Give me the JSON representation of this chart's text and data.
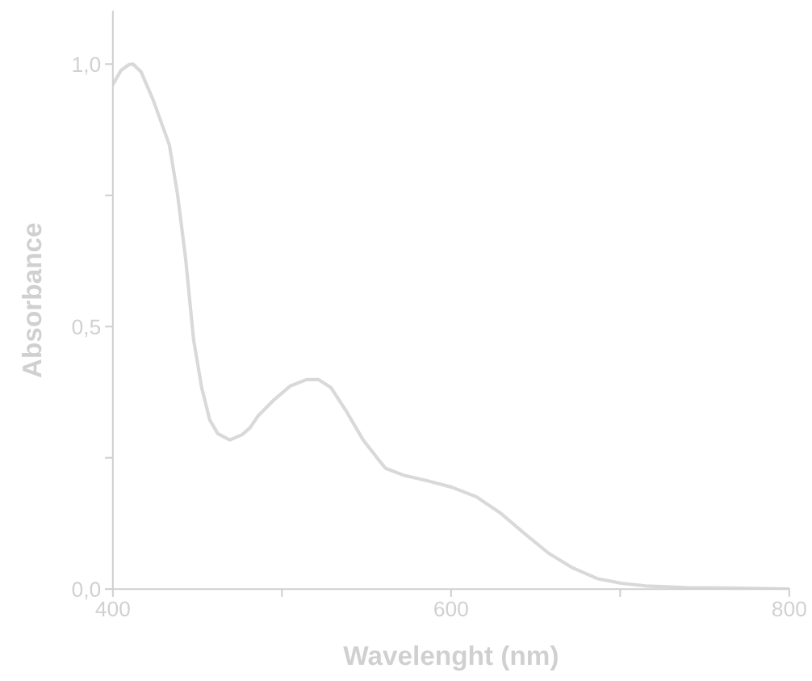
{
  "chart_data": {
    "type": "line",
    "xlabel": "Wavelenght (nm)",
    "ylabel": "Absorbance",
    "xlim": [
      400,
      800
    ],
    "ylim": [
      0,
      1.1
    ],
    "xticks": [
      400,
      {
        "value": 500,
        "label": null
      },
      600,
      {
        "value": 700,
        "label": null
      },
      800
    ],
    "yticks": [
      {
        "value": 0,
        "label": "0,0"
      },
      {
        "value": 0.25,
        "label": null
      },
      {
        "value": 0.5,
        "label": "0,5"
      },
      {
        "value": 0.75,
        "label": null
      },
      {
        "value": 1.0,
        "label": "1,0"
      }
    ],
    "grid": false,
    "legend": false,
    "marker": "none",
    "line_style": "solid",
    "series": [
      {
        "color": "#d9d9d9",
        "x": [
          400,
          404.8,
          409.5,
          411.9,
          416.7,
          423.9,
          433.4,
          438.2,
          443,
          447.7,
          452.5,
          457.3,
          462.1,
          469.2,
          476.4,
          481.1,
          485.9,
          495.5,
          505,
          514.6,
          521.7,
          528.9,
          538.4,
          548,
          557.5,
          561.3,
          571.8,
          586.2,
          600.5,
          614.8,
          629.1,
          643.4,
          657.8,
          672.1,
          686.4,
          700.7,
          715,
          738.9,
          762.8,
          800
        ],
        "values": [
          0.961,
          0.988,
          0.999,
          1.0,
          0.985,
          0.931,
          0.846,
          0.753,
          0.63,
          0.476,
          0.384,
          0.322,
          0.296,
          0.284,
          0.294,
          0.307,
          0.33,
          0.361,
          0.387,
          0.399,
          0.399,
          0.384,
          0.337,
          0.284,
          0.245,
          0.23,
          0.217,
          0.206,
          0.194,
          0.176,
          0.145,
          0.106,
          0.068,
          0.04,
          0.02,
          0.011,
          0.006,
          0.003,
          0.002,
          0.0
        ]
      }
    ]
  }
}
